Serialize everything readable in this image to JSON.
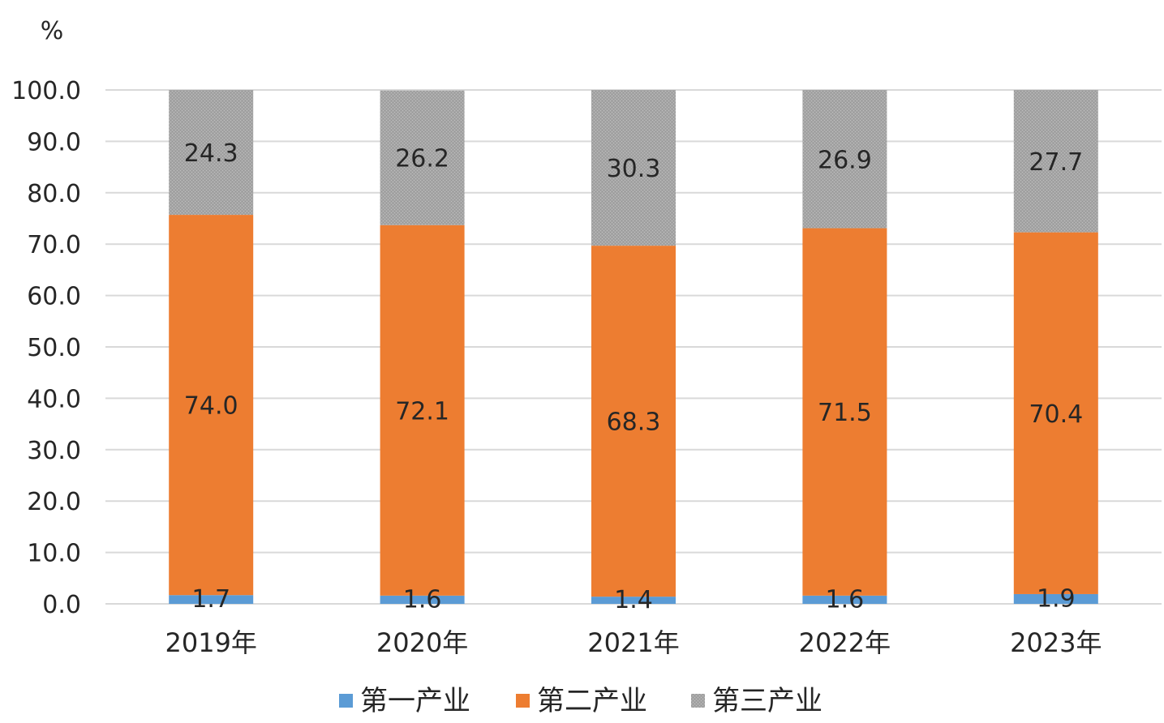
{
  "chart_data": {
    "type": "bar",
    "stacked": true,
    "unit": "%",
    "categories": [
      "2019年",
      "2020年",
      "2021年",
      "2022年",
      "2023年"
    ],
    "series": [
      {
        "name": "第一产业",
        "values": [
          1.7,
          1.6,
          1.4,
          1.6,
          1.9
        ],
        "color": "#5b9bd5"
      },
      {
        "name": "第二产业",
        "values": [
          74.0,
          72.1,
          68.3,
          71.5,
          70.4
        ],
        "color": "#ed7d31"
      },
      {
        "name": "第三产业",
        "values": [
          24.3,
          26.2,
          30.3,
          26.9,
          27.7
        ],
        "color": "#a5a5a5"
      }
    ],
    "ylim": [
      0,
      100
    ],
    "yticks": [
      "0.0",
      "10.0",
      "20.0",
      "30.0",
      "40.0",
      "50.0",
      "60.0",
      "70.0",
      "80.0",
      "90.0",
      "100.0"
    ],
    "grid": true,
    "legend_position": "bottom"
  }
}
